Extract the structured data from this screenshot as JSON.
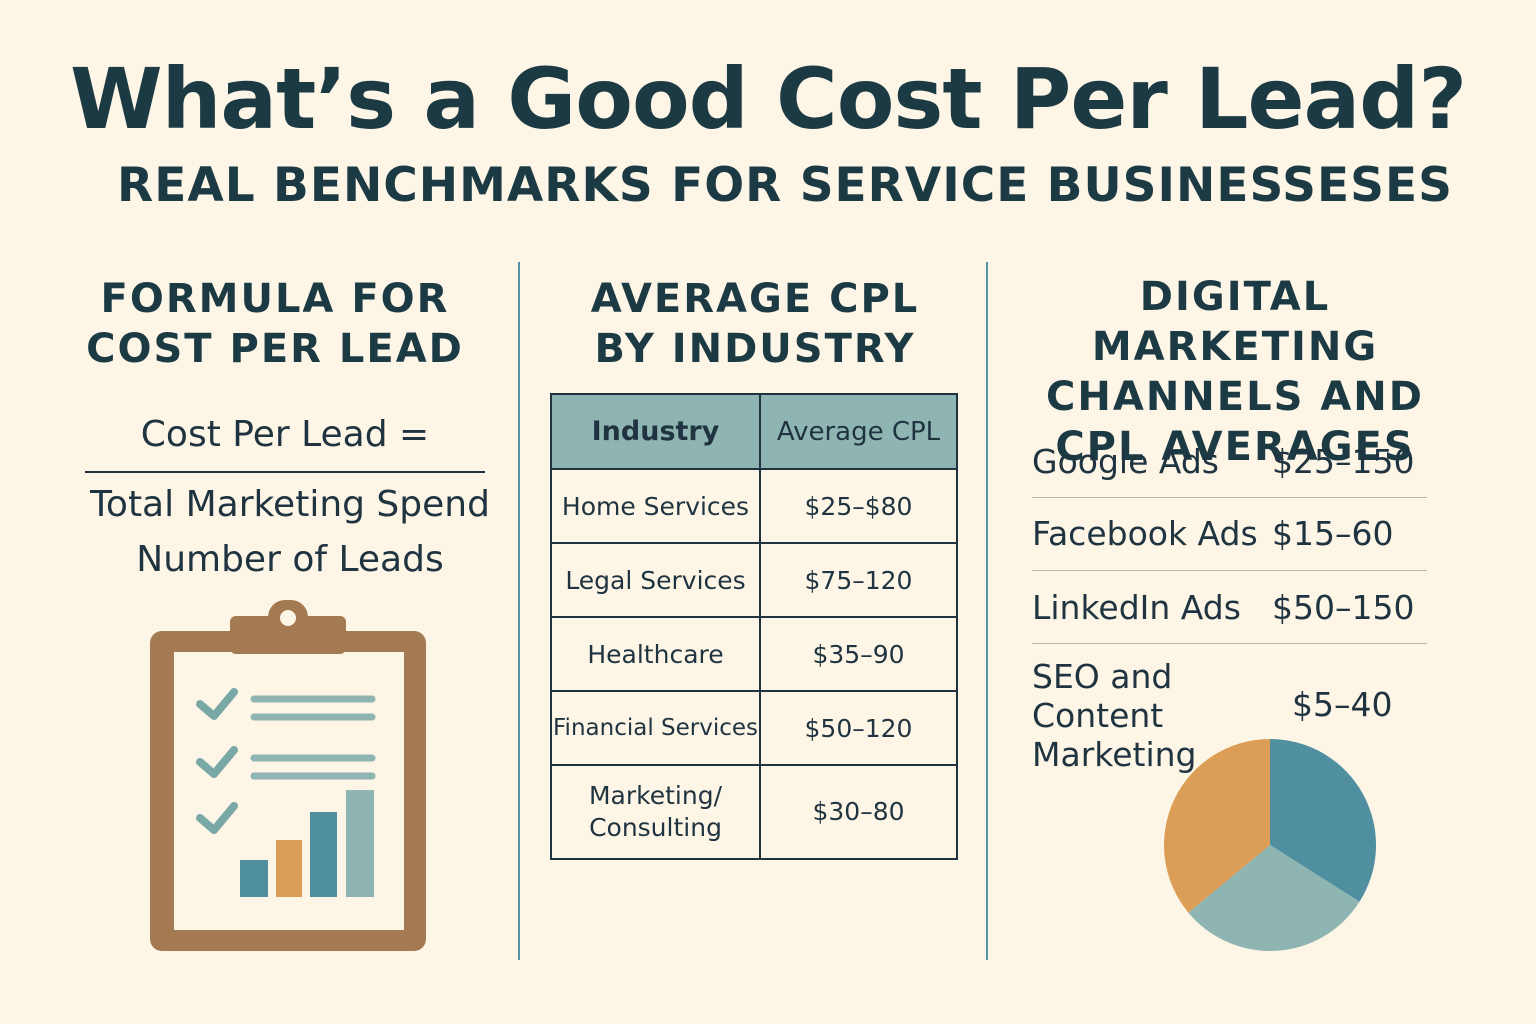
{
  "header": {
    "title": "What’s a Good Cost Per Lead?",
    "subtitle": "REAL BENCHMARKS FOR SERVICE BUSINESSESES"
  },
  "formula": {
    "heading_line1": "FORMULA FOR",
    "heading_line2": "COST PER LEAD",
    "lhs": "Cost Per Lead =",
    "numerator": "Total Marketing Spend",
    "denominator": "Number of Leads"
  },
  "industry": {
    "heading_line1": "AVERAGE CPL",
    "heading_line2": "BY INDUSTRY",
    "columns": [
      "Industry",
      "Average CPL"
    ],
    "rows": [
      {
        "industry": "Home Services",
        "cpl": "$25–$80"
      },
      {
        "industry": "Legal Services",
        "cpl": "$75–120"
      },
      {
        "industry": "Healthcare",
        "cpl": "$35–90"
      },
      {
        "industry": "Financial Services",
        "cpl": "$50–120"
      },
      {
        "industry": "Marketing/\nConsulting",
        "cpl": "$30–80"
      }
    ]
  },
  "channels": {
    "heading_line1": "DIGITAL MARKETING",
    "heading_line2": "CHANNELS AND",
    "heading_line3": "CPL AVERAGES",
    "items": [
      {
        "name": "Google Ads",
        "value": "$25–150"
      },
      {
        "name": "Facebook Ads",
        "value": "$15–60"
      },
      {
        "name": "LinkedIn Ads",
        "value": "$50–150"
      },
      {
        "name": "SEO and\nContent\nMarketing",
        "value": "$5–40"
      }
    ]
  },
  "colors": {
    "background": "#fdf5e6",
    "text": "#1c3a44",
    "teal": "#4f8fa0",
    "sage": "#8fb5b2",
    "orange": "#dc9d56",
    "brown": "#a47a52"
  },
  "pie_fractions": [
    0.34,
    0.3,
    0.36
  ]
}
